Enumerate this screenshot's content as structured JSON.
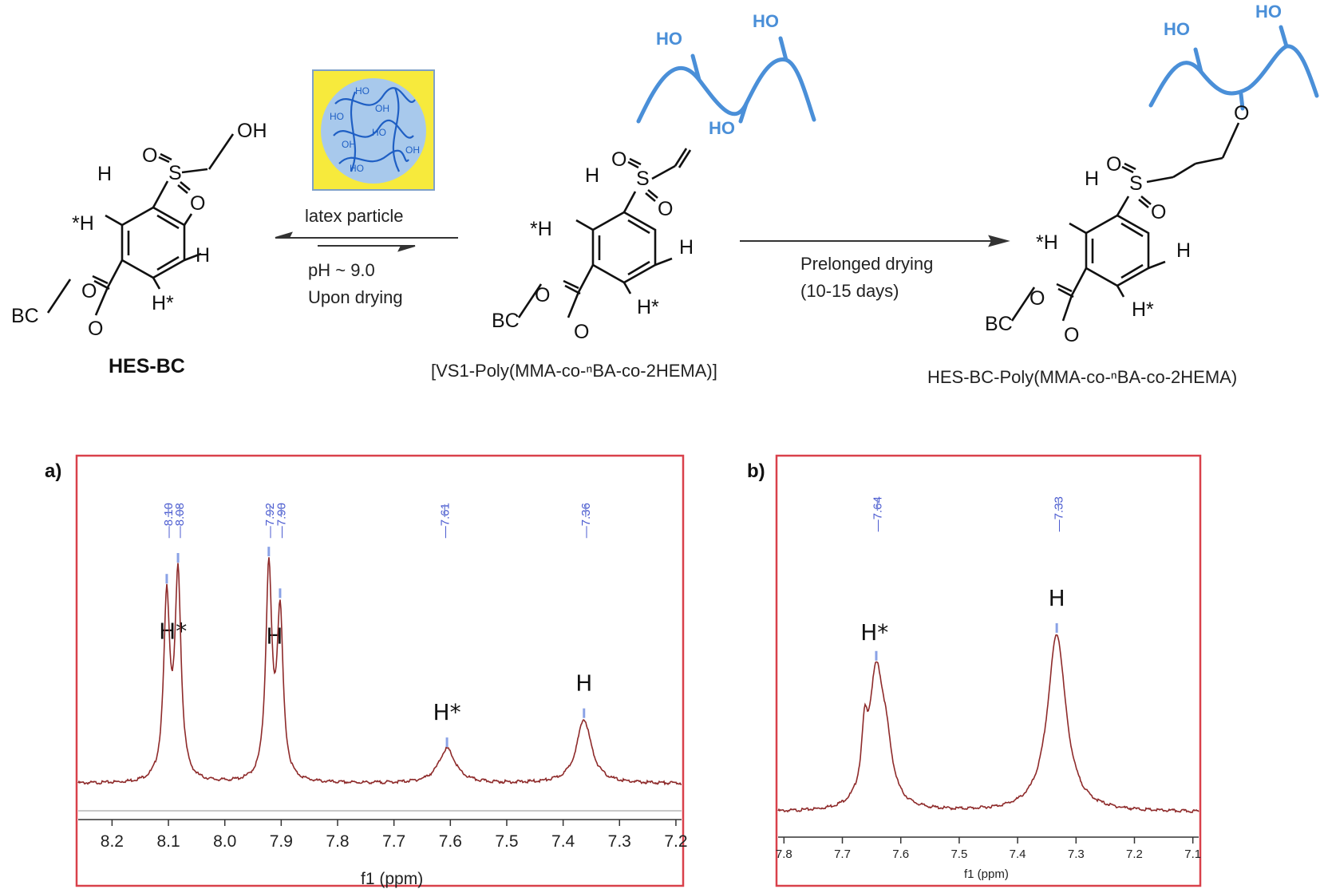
{
  "scheme": {
    "compound_left": {
      "name": "HES-BC",
      "atoms": {
        "h_top": "H",
        "h_left": "*H",
        "h_right": "H",
        "h_bottom": "H*",
        "oh": "OH",
        "o_sulfonyl_left": "O",
        "s": "S",
        "o_sulfonyl_bottom": "O",
        "o_ester": "O",
        "o_carbonyl": "O",
        "bc": "BC"
      }
    },
    "compound_middle": {
      "name": "[VS1-Poly(MMA-co-ⁿBA-co-2HEMA)]",
      "atoms": {
        "h_top": "H",
        "h_left": "*H",
        "h_right": "H",
        "h_bottom": "H*",
        "o_sulfonyl_left": "O",
        "s": "S",
        "o_sulfonyl_bottom": "O",
        "o_ester": "O",
        "o_carbonyl": "O",
        "bc": "BC"
      },
      "polymer_hydroxyls": [
        "HO",
        "HO",
        "HO"
      ]
    },
    "compound_right": {
      "name": "HES-BC-Poly(MMA-co-ⁿBA-co-2HEMA)",
      "atoms": {
        "h_top": "H",
        "h_left": "*H",
        "h_right": "H",
        "h_bottom": "H*",
        "o_sulfonyl_left": "O",
        "s": "S",
        "o_sulfonyl_bottom": "O",
        "o_ester": "O",
        "o_carbonyl": "O",
        "bc": "BC",
        "o_ether": "O"
      },
      "polymer_hydroxyls": [
        "HO",
        "HO"
      ]
    },
    "latex_particle": {
      "label": "latex particle",
      "hydroxyls": [
        "HO",
        "OH",
        "HO",
        "OH",
        "HO",
        "OH",
        "HO"
      ],
      "colors": {
        "background": "#f7ea3c",
        "particle": "#a8c9ec",
        "chain": "#1f5fc4"
      }
    },
    "equilibrium_conditions": [
      "pH ~ 9.0",
      "Upon drying"
    ],
    "forward_conditions": [
      "Prelonged drying",
      "(10-15 days)"
    ]
  },
  "chart_data": [
    {
      "panel": "a)",
      "type": "line",
      "xlabel": "f1 (ppm)",
      "xlim": [
        8.26,
        7.19
      ],
      "x_reversed": true,
      "xticks": [
        8.2,
        8.1,
        8.0,
        7.9,
        7.8,
        7.7,
        7.6,
        7.5,
        7.4,
        7.3,
        7.2
      ],
      "peak_labels": [
        "8.10",
        "8.08",
        "7.92",
        "7.90",
        "7.61",
        "7.36"
      ],
      "peak_labels_x": [
        8.1,
        8.08,
        7.92,
        7.9,
        7.61,
        7.36
      ],
      "peaks": [
        {
          "center": 8.103,
          "height": 0.7,
          "width": 0.0065
        },
        {
          "center": 8.083,
          "height": 0.79,
          "width": 0.0065
        },
        {
          "center": 7.922,
          "height": 0.82,
          "width": 0.0065
        },
        {
          "center": 7.902,
          "height": 0.64,
          "width": 0.0065
        },
        {
          "center": 7.606,
          "height": 0.135,
          "width": 0.018
        },
        {
          "center": 7.363,
          "height": 0.25,
          "width": 0.016
        }
      ],
      "assignments": [
        {
          "text": "H*",
          "x": 8.092
        },
        {
          "text": "H",
          "x": 7.912
        },
        {
          "text": "H*",
          "x": 7.606
        },
        {
          "text": "H",
          "x": 7.363
        }
      ],
      "colors": {
        "spectrum": "#8e2a2a",
        "frame": "#d9414b",
        "peak_marker": "#8aa2e6"
      }
    },
    {
      "panel": "b)",
      "type": "line",
      "xlabel": "f1 (ppm)",
      "xlim": [
        7.81,
        7.09
      ],
      "x_reversed": true,
      "xticks": [
        7.8,
        7.7,
        7.6,
        7.5,
        7.4,
        7.3,
        7.2,
        7.1
      ],
      "peak_labels": [
        "7.64",
        "7.33"
      ],
      "peak_labels_x": [
        7.64,
        7.33
      ],
      "peaks": [
        {
          "center": 7.642,
          "height": 0.62,
          "width": 0.015
        },
        {
          "center": 7.662,
          "height": 0.25,
          "width": 0.006
        },
        {
          "center": 7.625,
          "height": 0.2,
          "width": 0.012
        },
        {
          "center": 7.333,
          "height": 0.84,
          "width": 0.019
        }
      ],
      "assignments": [
        {
          "text": "H*",
          "x": 7.645
        },
        {
          "text": "H",
          "x": 7.333
        }
      ],
      "colors": {
        "spectrum": "#8e2a2a",
        "frame": "#d9414b",
        "peak_marker": "#8aa2e6"
      }
    }
  ]
}
